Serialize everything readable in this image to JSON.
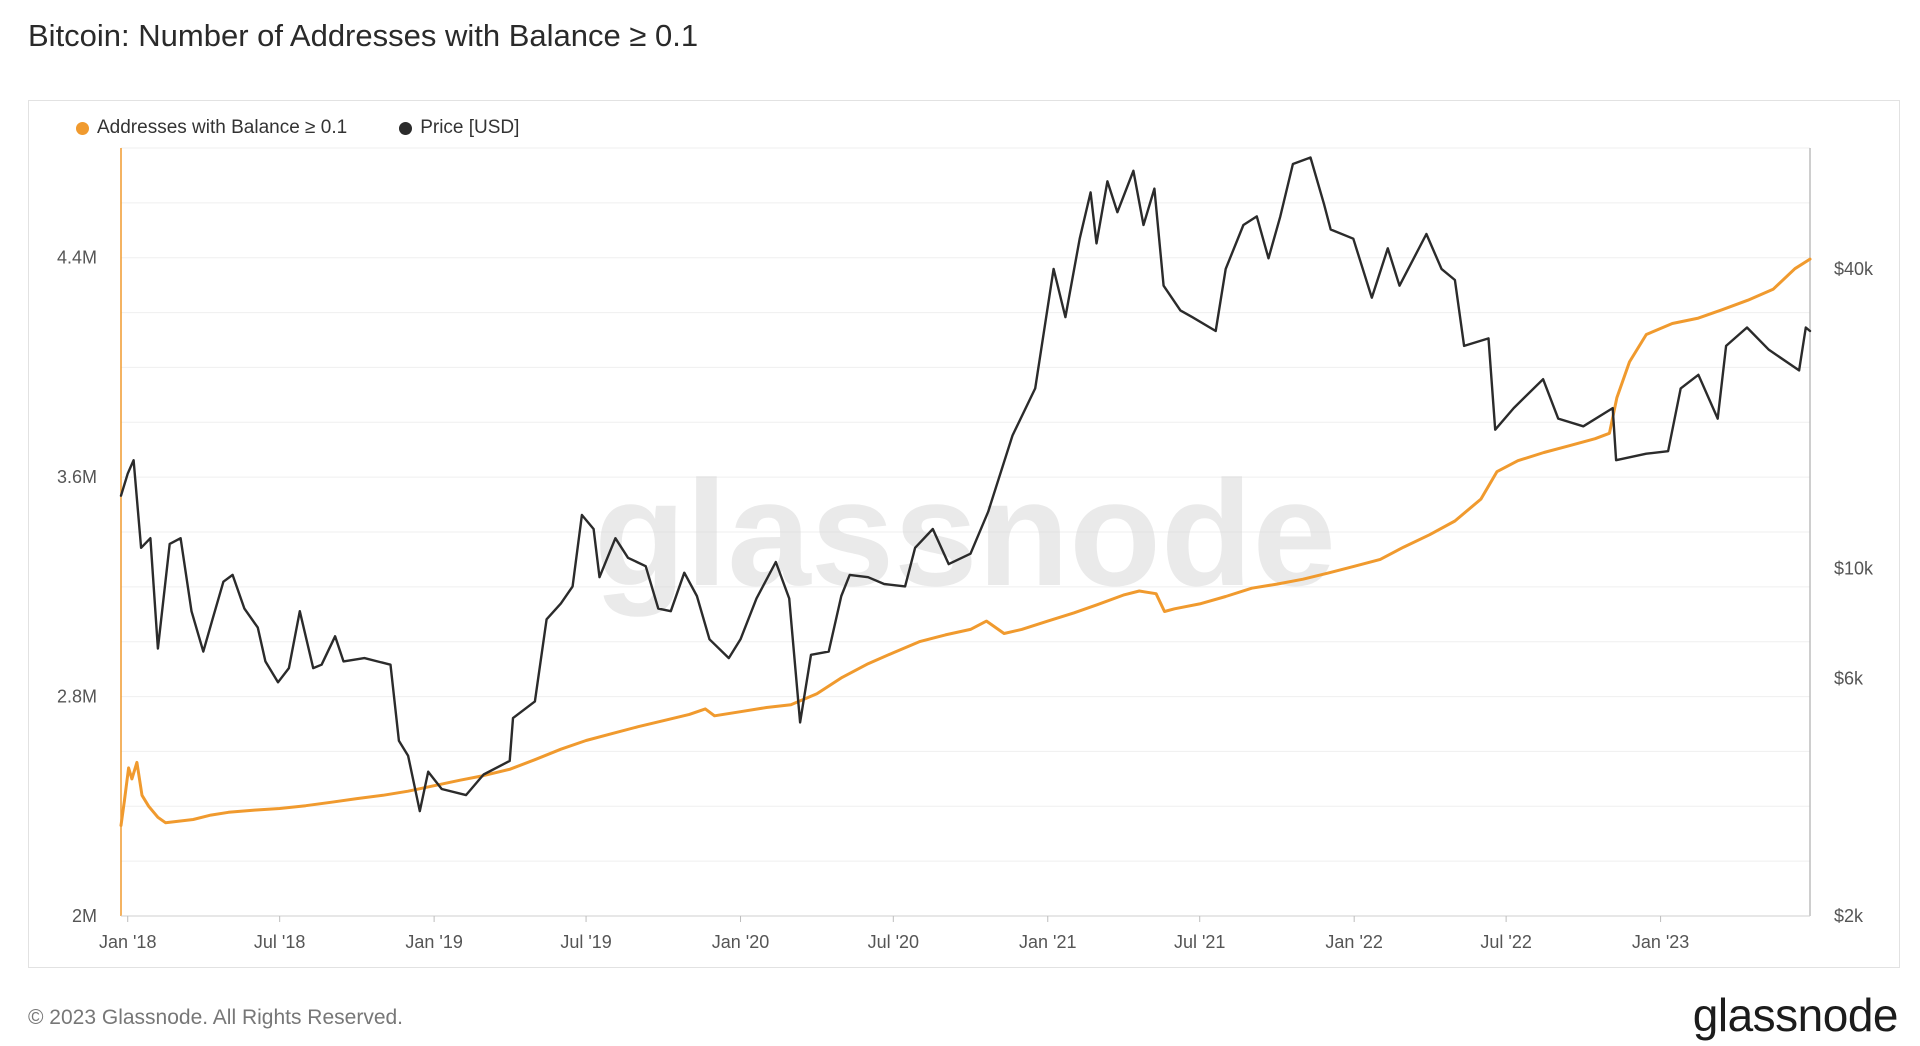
{
  "page": {
    "title": "Bitcoin: Number of Addresses with Balance ≥ 0.1",
    "footer": "© 2023 Glassnode. All Rights Reserved.",
    "brand": "glassnode",
    "watermark": "glassnode"
  },
  "chart_data": {
    "type": "line",
    "title": "Bitcoin: Number of Addresses with Balance ≥ 0.1",
    "grid": true,
    "legend_placement": "top-left",
    "x_range": [
      "2017-12-24",
      "2023-06-28"
    ],
    "x_ticks": [
      {
        "label": "Jan '18",
        "date": "2018-01-01"
      },
      {
        "label": "Jul '18",
        "date": "2018-07-01"
      },
      {
        "label": "Jan '19",
        "date": "2019-01-01"
      },
      {
        "label": "Jul '19",
        "date": "2019-07-01"
      },
      {
        "label": "Jan '20",
        "date": "2020-01-01"
      },
      {
        "label": "Jul '20",
        "date": "2020-07-01"
      },
      {
        "label": "Jan '21",
        "date": "2021-01-01"
      },
      {
        "label": "Jul '21",
        "date": "2021-07-01"
      },
      {
        "label": "Jan '22",
        "date": "2022-01-01"
      },
      {
        "label": "Jul '22",
        "date": "2022-07-01"
      },
      {
        "label": "Jan '23",
        "date": "2023-01-01"
      }
    ],
    "y_left": {
      "scale": "linear",
      "range": [
        2000000,
        4800000
      ],
      "ticks": [
        {
          "label": "2M",
          "value": 2000000
        },
        {
          "label": "2.8M",
          "value": 2800000
        },
        {
          "label": "3.6M",
          "value": 3600000
        },
        {
          "label": "4.4M",
          "value": 4400000
        }
      ]
    },
    "y_right": {
      "scale": "log",
      "range": [
        2000,
        70000
      ],
      "ticks": [
        {
          "label": "$2k",
          "value": 2000
        },
        {
          "label": "$6k",
          "value": 6000
        },
        {
          "label": "$10k",
          "value": 10000
        },
        {
          "label": "$40k",
          "value": 40000
        }
      ]
    },
    "series": [
      {
        "name": "Addresses with Balance ≥ 0.1",
        "color": "#f09a2e",
        "axis": "left",
        "points": [
          [
            "2017-12-24",
            2330000
          ],
          [
            "2017-12-28",
            2420000
          ],
          [
            "2018-01-02",
            2540000
          ],
          [
            "2018-01-06",
            2500000
          ],
          [
            "2018-01-12",
            2560000
          ],
          [
            "2018-01-18",
            2440000
          ],
          [
            "2018-01-26",
            2400000
          ],
          [
            "2018-02-06",
            2360000
          ],
          [
            "2018-02-15",
            2340000
          ],
          [
            "2018-03-01",
            2345000
          ],
          [
            "2018-03-20",
            2352000
          ],
          [
            "2018-04-10",
            2368000
          ],
          [
            "2018-05-01",
            2378000
          ],
          [
            "2018-06-01",
            2386000
          ],
          [
            "2018-07-01",
            2392000
          ],
          [
            "2018-08-01",
            2402000
          ],
          [
            "2018-09-01",
            2415000
          ],
          [
            "2018-10-01",
            2428000
          ],
          [
            "2018-11-01",
            2440000
          ],
          [
            "2018-12-01",
            2455000
          ],
          [
            "2019-01-01",
            2475000
          ],
          [
            "2019-02-01",
            2495000
          ],
          [
            "2019-03-01",
            2512000
          ],
          [
            "2019-04-01",
            2535000
          ],
          [
            "2019-05-01",
            2570000
          ],
          [
            "2019-06-01",
            2608000
          ],
          [
            "2019-07-01",
            2640000
          ],
          [
            "2019-08-01",
            2665000
          ],
          [
            "2019-09-01",
            2690000
          ],
          [
            "2019-10-01",
            2712000
          ],
          [
            "2019-11-01",
            2735000
          ],
          [
            "2019-11-20",
            2755000
          ],
          [
            "2019-12-01",
            2730000
          ],
          [
            "2020-01-01",
            2745000
          ],
          [
            "2020-02-01",
            2760000
          ],
          [
            "2020-03-01",
            2770000
          ],
          [
            "2020-04-01",
            2810000
          ],
          [
            "2020-05-01",
            2870000
          ],
          [
            "2020-06-01",
            2920000
          ],
          [
            "2020-07-01",
            2960000
          ],
          [
            "2020-08-01",
            3000000
          ],
          [
            "2020-09-01",
            3025000
          ],
          [
            "2020-10-01",
            3045000
          ],
          [
            "2020-10-20",
            3075000
          ],
          [
            "2020-11-10",
            3030000
          ],
          [
            "2020-12-01",
            3045000
          ],
          [
            "2021-01-01",
            3075000
          ],
          [
            "2021-02-01",
            3105000
          ],
          [
            "2021-03-01",
            3135000
          ],
          [
            "2021-04-01",
            3170000
          ],
          [
            "2021-04-20",
            3185000
          ],
          [
            "2021-05-10",
            3175000
          ],
          [
            "2021-05-20",
            3110000
          ],
          [
            "2021-06-01",
            3120000
          ],
          [
            "2021-07-01",
            3138000
          ],
          [
            "2021-08-01",
            3165000
          ],
          [
            "2021-09-01",
            3195000
          ],
          [
            "2021-10-01",
            3210000
          ],
          [
            "2021-11-01",
            3228000
          ],
          [
            "2021-12-01",
            3250000
          ],
          [
            "2022-01-01",
            3275000
          ],
          [
            "2022-02-01",
            3300000
          ],
          [
            "2022-03-01",
            3345000
          ],
          [
            "2022-04-01",
            3390000
          ],
          [
            "2022-05-01",
            3440000
          ],
          [
            "2022-06-01",
            3520000
          ],
          [
            "2022-06-20",
            3620000
          ],
          [
            "2022-07-15",
            3660000
          ],
          [
            "2022-08-15",
            3690000
          ],
          [
            "2022-09-15",
            3715000
          ],
          [
            "2022-10-15",
            3740000
          ],
          [
            "2022-11-01",
            3760000
          ],
          [
            "2022-11-10",
            3890000
          ],
          [
            "2022-11-25",
            4020000
          ],
          [
            "2022-12-15",
            4120000
          ],
          [
            "2023-01-15",
            4160000
          ],
          [
            "2023-02-15",
            4180000
          ],
          [
            "2023-03-15",
            4210000
          ],
          [
            "2023-04-15",
            4245000
          ],
          [
            "2023-05-15",
            4285000
          ],
          [
            "2023-06-10",
            4360000
          ],
          [
            "2023-06-28",
            4395000
          ]
        ]
      },
      {
        "name": "Price [USD]",
        "color": "#2b2b2b",
        "axis": "right",
        "points": [
          [
            "2017-12-24",
            14000
          ],
          [
            "2018-01-01",
            15500
          ],
          [
            "2018-01-08",
            16500
          ],
          [
            "2018-01-17",
            11000
          ],
          [
            "2018-01-28",
            11500
          ],
          [
            "2018-02-06",
            6900
          ],
          [
            "2018-02-20",
            11200
          ],
          [
            "2018-03-05",
            11500
          ],
          [
            "2018-03-18",
            8200
          ],
          [
            "2018-04-01",
            6800
          ],
          [
            "2018-04-12",
            7900
          ],
          [
            "2018-04-25",
            9400
          ],
          [
            "2018-05-06",
            9700
          ],
          [
            "2018-05-20",
            8300
          ],
          [
            "2018-06-05",
            7600
          ],
          [
            "2018-06-14",
            6500
          ],
          [
            "2018-06-29",
            5900
          ],
          [
            "2018-07-12",
            6300
          ],
          [
            "2018-07-25",
            8200
          ],
          [
            "2018-08-10",
            6300
          ],
          [
            "2018-08-20",
            6400
          ],
          [
            "2018-09-05",
            7300
          ],
          [
            "2018-09-15",
            6500
          ],
          [
            "2018-10-10",
            6600
          ],
          [
            "2018-11-10",
            6400
          ],
          [
            "2018-11-20",
            4500
          ],
          [
            "2018-12-01",
            4200
          ],
          [
            "2018-12-15",
            3250
          ],
          [
            "2018-12-25",
            3900
          ],
          [
            "2019-01-10",
            3600
          ],
          [
            "2019-02-08",
            3500
          ],
          [
            "2019-03-01",
            3850
          ],
          [
            "2019-04-01",
            4100
          ],
          [
            "2019-04-05",
            5000
          ],
          [
            "2019-05-01",
            5400
          ],
          [
            "2019-05-15",
            7900
          ],
          [
            "2019-06-01",
            8500
          ],
          [
            "2019-06-15",
            9200
          ],
          [
            "2019-06-26",
            12800
          ],
          [
            "2019-07-10",
            12000
          ],
          [
            "2019-07-17",
            9600
          ],
          [
            "2019-08-05",
            11500
          ],
          [
            "2019-08-20",
            10500
          ],
          [
            "2019-09-10",
            10100
          ],
          [
            "2019-09-25",
            8300
          ],
          [
            "2019-10-10",
            8200
          ],
          [
            "2019-10-26",
            9800
          ],
          [
            "2019-11-10",
            8800
          ],
          [
            "2019-11-25",
            7200
          ],
          [
            "2019-12-18",
            6600
          ],
          [
            "2020-01-01",
            7200
          ],
          [
            "2020-01-20",
            8700
          ],
          [
            "2020-02-12",
            10300
          ],
          [
            "2020-02-28",
            8700
          ],
          [
            "2020-03-12",
            4900
          ],
          [
            "2020-03-25",
            6700
          ],
          [
            "2020-04-15",
            6800
          ],
          [
            "2020-04-30",
            8800
          ],
          [
            "2020-05-10",
            9700
          ],
          [
            "2020-06-01",
            9600
          ],
          [
            "2020-06-20",
            9300
          ],
          [
            "2020-07-15",
            9200
          ],
          [
            "2020-07-27",
            11000
          ],
          [
            "2020-08-17",
            12000
          ],
          [
            "2020-09-05",
            10200
          ],
          [
            "2020-10-01",
            10700
          ],
          [
            "2020-10-22",
            13000
          ],
          [
            "2020-11-20",
            18500
          ],
          [
            "2020-12-17",
            23000
          ],
          [
            "2021-01-08",
            40000
          ],
          [
            "2021-01-22",
            32000
          ],
          [
            "2021-02-08",
            46000
          ],
          [
            "2021-02-21",
            57000
          ],
          [
            "2021-02-28",
            45000
          ],
          [
            "2021-03-13",
            60000
          ],
          [
            "2021-03-25",
            52000
          ],
          [
            "2021-04-13",
            63000
          ],
          [
            "2021-04-25",
            49000
          ],
          [
            "2021-05-08",
            58000
          ],
          [
            "2021-05-19",
            37000
          ],
          [
            "2021-06-08",
            33000
          ],
          [
            "2021-06-22",
            32000
          ],
          [
            "2021-07-20",
            30000
          ],
          [
            "2021-08-01",
            40000
          ],
          [
            "2021-08-22",
            49000
          ],
          [
            "2021-09-07",
            51000
          ],
          [
            "2021-09-21",
            42000
          ],
          [
            "2021-10-05",
            51000
          ],
          [
            "2021-10-20",
            65000
          ],
          [
            "2021-11-10",
            67000
          ],
          [
            "2021-11-26",
            54000
          ],
          [
            "2021-12-04",
            48000
          ],
          [
            "2021-12-31",
            46000
          ],
          [
            "2022-01-22",
            35000
          ],
          [
            "2022-02-10",
            44000
          ],
          [
            "2022-02-24",
            37000
          ],
          [
            "2022-03-28",
            47000
          ],
          [
            "2022-04-15",
            40000
          ],
          [
            "2022-05-01",
            38000
          ],
          [
            "2022-05-12",
            28000
          ],
          [
            "2022-06-10",
            29000
          ],
          [
            "2022-06-18",
            19000
          ],
          [
            "2022-07-10",
            21000
          ],
          [
            "2022-08-14",
            24000
          ],
          [
            "2022-09-01",
            20000
          ],
          [
            "2022-10-01",
            19300
          ],
          [
            "2022-11-05",
            21000
          ],
          [
            "2022-11-09",
            16500
          ],
          [
            "2022-12-15",
            17000
          ],
          [
            "2023-01-10",
            17200
          ],
          [
            "2023-01-25",
            23000
          ],
          [
            "2023-02-15",
            24500
          ],
          [
            "2023-03-10",
            20000
          ],
          [
            "2023-03-20",
            28000
          ],
          [
            "2023-04-14",
            30500
          ],
          [
            "2023-05-10",
            27500
          ],
          [
            "2023-06-15",
            25000
          ],
          [
            "2023-06-23",
            30500
          ],
          [
            "2023-06-28",
            30000
          ]
        ]
      }
    ]
  }
}
